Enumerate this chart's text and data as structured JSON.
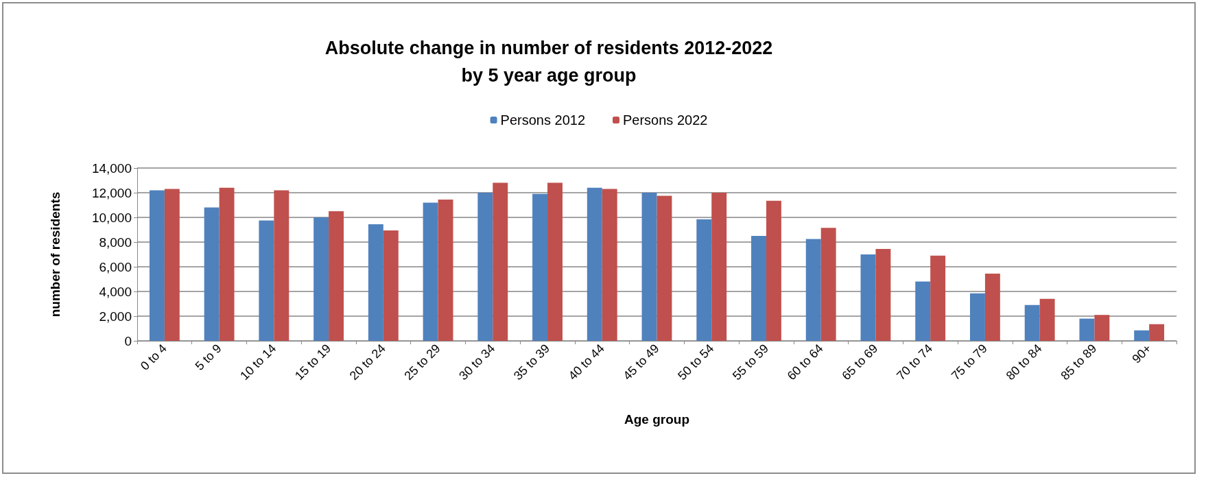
{
  "chart_data": {
    "type": "bar",
    "title": "Absolute change in number of residents 2012-2022\nby 5 year age group",
    "xlabel": "Age group",
    "ylabel": "number of residents",
    "categories": [
      "0 to 4",
      "5 to 9",
      "10 to 14",
      "15 to 19",
      "20 to 24",
      "25 to 29",
      "30 to 34",
      "35 to 39",
      "40 to 44",
      "45 to 49",
      "50 to 54",
      "55 to 59",
      "60 to 64",
      "65 to 69",
      "70 to 74",
      "75 to 79",
      "80 to 84",
      "85 to 89",
      "90+"
    ],
    "series": [
      {
        "name": "Persons 2012",
        "color": "#4f81bd",
        "values": [
          12200,
          10800,
          9750,
          10000,
          9450,
          11200,
          12000,
          11900,
          12400,
          12000,
          9850,
          8500,
          8250,
          7000,
          4800,
          3850,
          2900,
          1800,
          850
        ]
      },
      {
        "name": "Persons 2022",
        "color": "#c0504d",
        "values": [
          12300,
          12400,
          12200,
          10500,
          8950,
          11450,
          12800,
          12800,
          12300,
          11750,
          12000,
          11350,
          9150,
          7450,
          6900,
          5450,
          3400,
          2100,
          1350
        ]
      }
    ],
    "ylim": [
      0,
      14000
    ],
    "yticks": [
      0,
      {
        "value": 2000,
        "label": "2,000"
      },
      {
        "value": 4000,
        "label": "4,000"
      },
      {
        "value": 6000,
        "label": "6,000"
      },
      {
        "value": 8000,
        "label": "8,000"
      },
      {
        "value": 10000,
        "label": "10,000"
      },
      {
        "value": 12000,
        "label": "12,000"
      },
      {
        "value": 14000,
        "label": "14,000"
      }
    ],
    "grid": "y",
    "legend": "top"
  }
}
